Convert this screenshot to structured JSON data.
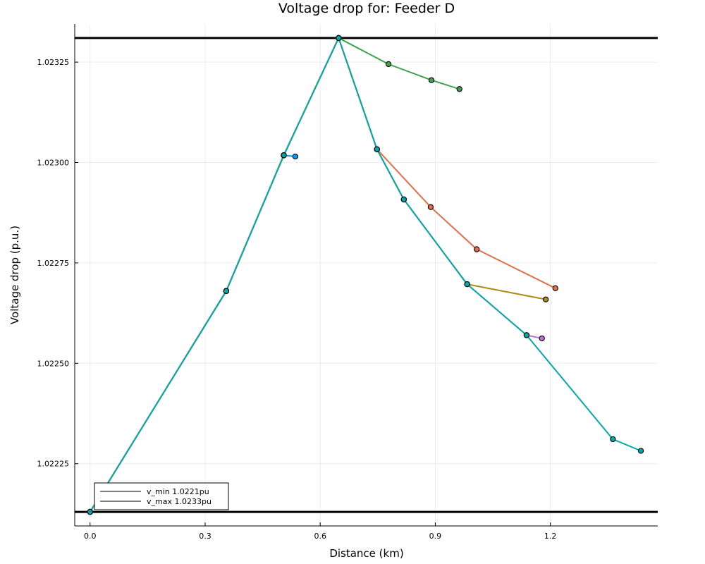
{
  "chart_data": {
    "type": "line",
    "title": "Voltage drop for: Feeder D",
    "xlabel": "Distance (km)",
    "ylabel": "Voltage drop (p.u.)",
    "xlim": [
      -0.04,
      1.48
    ],
    "ylim": [
      1.022095,
      1.023345
    ],
    "xticks": [
      0.0,
      0.3,
      0.6,
      0.9,
      1.2
    ],
    "xtick_labels": [
      "0.0",
      "0.3",
      "0.6",
      "0.9",
      "1.2"
    ],
    "yticks": [
      1.02225,
      1.0225,
      1.02275,
      1.023,
      1.02325
    ],
    "ytick_labels": [
      "1.02225",
      "1.02250",
      "1.02275",
      "1.02300",
      "1.02325"
    ],
    "grid": true,
    "legend_position": "bottom-left",
    "reference_lines": [
      {
        "name": "v_min 1.0221pu",
        "value": 1.02213,
        "color": "#000000"
      },
      {
        "name": "v_max 1.0233pu",
        "value": 1.02331,
        "color": "#000000"
      }
    ],
    "series": [
      {
        "color": "#009af9",
        "x": [
          0.0,
          0.355,
          0.505,
          0.535
        ],
        "y": [
          1.02213,
          1.02268,
          1.023018,
          1.023015
        ]
      },
      {
        "color": "#e26f46",
        "x": [
          0.0,
          0.355,
          0.505,
          0.648,
          0.748,
          0.888,
          1.008,
          1.213
        ],
        "y": [
          1.02213,
          1.02268,
          1.023018,
          1.02331,
          1.023033,
          1.022889,
          1.022784,
          1.022687
        ]
      },
      {
        "color": "#3da44d",
        "x": [
          0.0,
          0.355,
          0.505,
          0.648,
          0.778,
          0.89,
          0.963
        ],
        "y": [
          1.02213,
          1.02268,
          1.023018,
          1.02331,
          1.023245,
          1.023205,
          1.023183
        ]
      },
      {
        "color": "#c271d2",
        "x": [
          0.0,
          0.355,
          0.505,
          0.648,
          0.748,
          0.818,
          0.983,
          1.138,
          1.178
        ],
        "y": [
          1.02213,
          1.02268,
          1.023018,
          1.02331,
          1.023033,
          1.022908,
          1.022697,
          1.02257,
          1.022562
        ]
      },
      {
        "color": "#ac8d18",
        "x": [
          0.0,
          0.355,
          0.505,
          0.648,
          0.748,
          0.818,
          0.983,
          1.188
        ],
        "y": [
          1.02213,
          1.02268,
          1.023018,
          1.02331,
          1.023033,
          1.022908,
          1.022697,
          1.022659
        ]
      },
      {
        "color": "#00a9ad",
        "x": [
          0.0,
          0.355,
          0.505,
          0.648,
          0.748,
          0.818,
          0.983,
          1.138,
          1.363,
          1.436
        ],
        "y": [
          1.02213,
          1.02268,
          1.023018,
          1.02331,
          1.023033,
          1.022908,
          1.022697,
          1.02257,
          1.022311,
          1.022282
        ]
      }
    ]
  }
}
